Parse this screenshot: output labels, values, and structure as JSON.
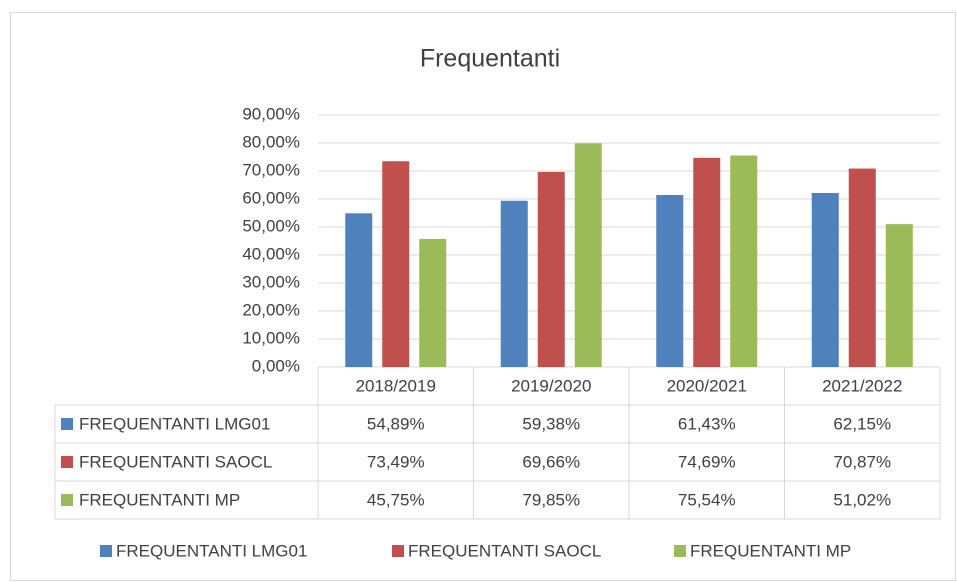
{
  "chart_data": {
    "type": "bar",
    "title": "Frequentanti",
    "categories": [
      "2018/2019",
      "2019/2020",
      "2020/2021",
      "2021/2022"
    ],
    "series": [
      {
        "name": "FREQUENTANTI LMG01",
        "color": "#4f81bd",
        "values": [
          54.89,
          59.38,
          61.43,
          62.15
        ],
        "value_labels": [
          "54,89%",
          "59,38%",
          "61,43%",
          "62,15%"
        ]
      },
      {
        "name": "FREQUENTANTI SAOCL",
        "color": "#c0504d",
        "values": [
          73.49,
          69.66,
          74.69,
          70.87
        ],
        "value_labels": [
          "73,49%",
          "69,66%",
          "74,69%",
          "70,87%"
        ]
      },
      {
        "name": "FREQUENTANTI MP",
        "color": "#9bbb59",
        "values": [
          45.75,
          79.85,
          75.54,
          51.02
        ],
        "value_labels": [
          "45,75%",
          "79,85%",
          "75,54%",
          "51,02%"
        ]
      }
    ],
    "ylim": [
      0,
      90
    ],
    "yticks": [
      {
        "value": 0,
        "label": "0,00%"
      },
      {
        "value": 10,
        "label": "10,00%"
      },
      {
        "value": 20,
        "label": "20,00%"
      },
      {
        "value": 30,
        "label": "30,00%"
      },
      {
        "value": 40,
        "label": "40,00%"
      },
      {
        "value": 50,
        "label": "50,00%"
      },
      {
        "value": 60,
        "label": "60,00%"
      },
      {
        "value": 70,
        "label": "70,00%"
      },
      {
        "value": 80,
        "label": "80,00%"
      },
      {
        "value": 90,
        "label": "90,00%"
      }
    ],
    "grid": true,
    "legend": "bottom",
    "data_table": true
  }
}
